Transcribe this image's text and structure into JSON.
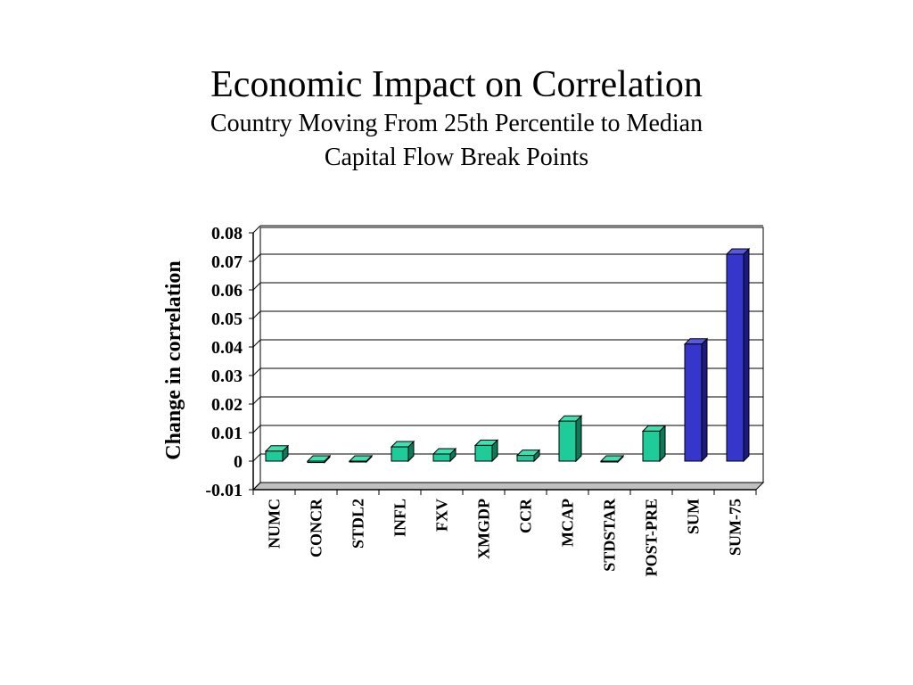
{
  "title": "Economic Impact on Correlation",
  "subtitle_line1": "Country Moving From 25th Percentile to Median",
  "subtitle_line2": "Capital Flow Break Points",
  "chart_data": {
    "type": "bar",
    "ylabel": "Change in correlation",
    "xlabel": "",
    "ylim": [
      -0.01,
      0.08
    ],
    "yticks": [
      "0.08",
      "0.07",
      "0.06",
      "0.05",
      "0.04",
      "0.03",
      "0.02",
      "0.01",
      "0",
      "-0.01"
    ],
    "ytick_values": [
      0.08,
      0.07,
      0.06,
      0.05,
      0.04,
      0.03,
      0.02,
      0.01,
      0,
      -0.01
    ],
    "grid": true,
    "categories": [
      "NUMC",
      "CONCR",
      "STDL2",
      "INFL",
      "FXV",
      "XMGDP",
      "CCR",
      "MCAP",
      "STDSTAR",
      "POST-PRE",
      "SUM",
      "SUM-75"
    ],
    "values": [
      0.0035,
      -0.0005,
      -0.0003,
      0.005,
      0.0025,
      0.0055,
      0.002,
      0.014,
      0.0,
      0.0105,
      0.041,
      0.0725
    ],
    "colors": {
      "green_face": "#1fcc99",
      "green_side": "#0b7a5a",
      "green_top": "#3fe0b0",
      "blue_face": "#3636cc",
      "blue_side": "#1a1a80",
      "blue_top": "#5858e0",
      "floor": "#c0c0c0"
    },
    "bar_color_groups": [
      "green",
      "green",
      "green",
      "green",
      "green",
      "green",
      "green",
      "green",
      "green",
      "green",
      "blue",
      "blue"
    ]
  }
}
